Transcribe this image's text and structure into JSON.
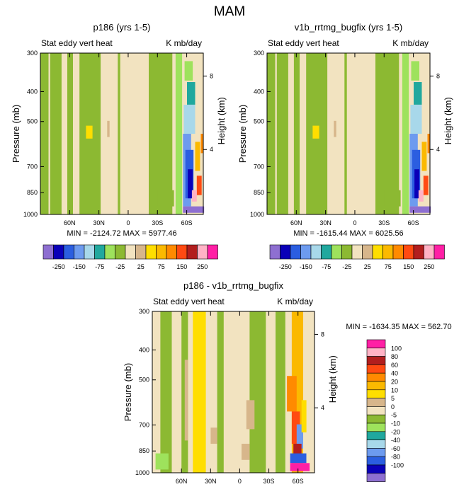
{
  "page_title": "MAM",
  "colors": {
    "neg250": "#8e6fd1",
    "neg200": "#0a00b8",
    "neg150": "#2b5ee0",
    "neg100": "#6d9bef",
    "neg75": "#a8d8ea",
    "neg50": "#20a89e",
    "neg25": "#9ee25c",
    "zero": "#8cb932",
    "p0": "#f2e3c0",
    "p25": "#d7b68b",
    "p50": "#ffde00",
    "p75": "#fbb900",
    "p100": "#ff8a00",
    "p150": "#ff4a12",
    "p200": "#b21e1e",
    "p250": "#ffb3c6",
    "p300": "#ff1fa5"
  },
  "chart_data": [
    {
      "id": "panel1",
      "type": "contour",
      "title": "p186 (yrs 1-5)",
      "left_label": "Stat eddy vert heat",
      "right_label": "K mb/day",
      "ylabel": "Pressure (mb)",
      "ylabel_right": "Height (km)",
      "yticks": [
        "300",
        "400",
        "500",
        "700",
        "850",
        "1000"
      ],
      "yticks_right": [
        "8",
        "4"
      ],
      "xticks": [
        "60N",
        "30N",
        "0",
        "30S",
        "60S"
      ],
      "stats": "MIN = -2124.72  MAX = 5977.46",
      "levels": [
        "-250",
        "-150",
        "-75",
        "-25",
        "25",
        "75",
        "150",
        "250"
      ]
    },
    {
      "id": "panel2",
      "type": "contour",
      "title": "v1b_rrtmg_bugfix (yrs 1-5)",
      "left_label": "Stat eddy vert heat",
      "right_label": "K mb/day",
      "ylabel": "Pressure (mb)",
      "ylabel_right": "Height (km)",
      "yticks": [
        "300",
        "400",
        "500",
        "700",
        "850",
        "1000"
      ],
      "yticks_right": [
        "8",
        "4"
      ],
      "xticks": [
        "60N",
        "30N",
        "0",
        "30S",
        "60S"
      ],
      "stats": "MIN = -1615.44  MAX = 6025.56",
      "levels": [
        "-250",
        "-150",
        "-75",
        "-25",
        "25",
        "75",
        "150",
        "250"
      ]
    },
    {
      "id": "panel3",
      "type": "contour",
      "title": "p186 - v1b_rrtmg_bugfix",
      "left_label": "Stat eddy vert heat",
      "right_label": "K mb/day",
      "ylabel": "Pressure (mb)",
      "ylabel_right": "Height (km)",
      "yticks": [
        "300",
        "400",
        "500",
        "700",
        "850",
        "1000"
      ],
      "yticks_right": [
        "8",
        "4"
      ],
      "xticks": [
        "60N",
        "30N",
        "0",
        "30S",
        "60S"
      ],
      "stats": "MIN = -1634.35  MAX = 562.70",
      "levels": [
        "100",
        "80",
        "60",
        "40",
        "20",
        "10",
        "5",
        "0",
        "-5",
        "-10",
        "-20",
        "-40",
        "-60",
        "-80",
        "-100"
      ]
    }
  ]
}
